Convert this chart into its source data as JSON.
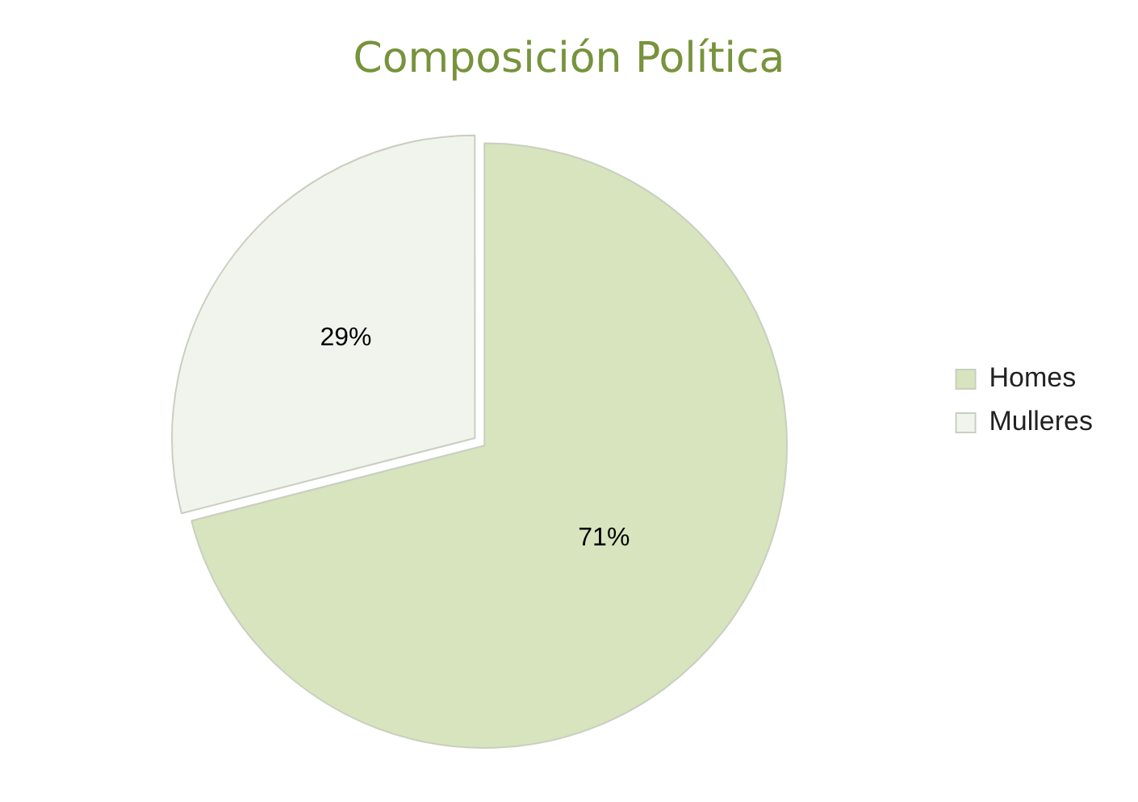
{
  "chart_data": {
    "type": "pie",
    "title": "Composición Política",
    "categories": [
      "Homes",
      "Mulleres"
    ],
    "values": [
      71,
      29
    ],
    "colors": [
      "#d7e4bd",
      "#f1f4ec"
    ],
    "value_labels": [
      "71%",
      "29%"
    ],
    "legend": "right"
  }
}
